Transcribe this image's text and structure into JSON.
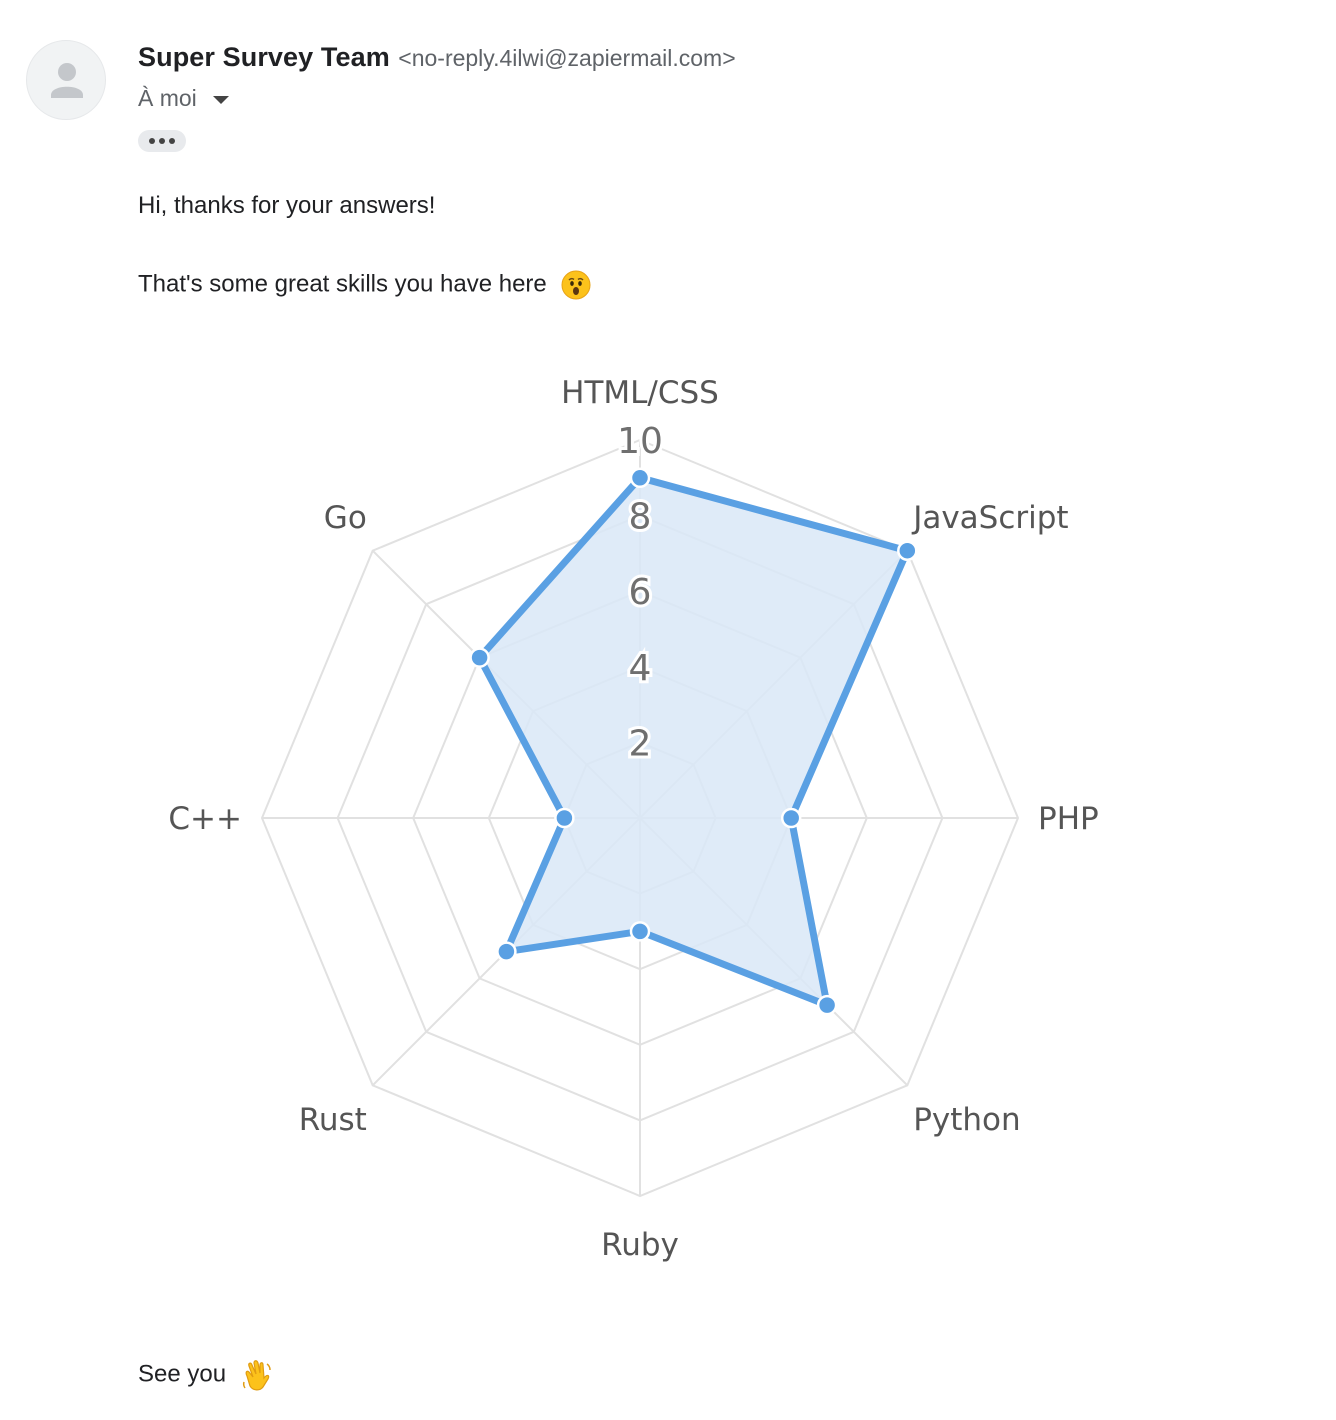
{
  "sender": {
    "name": "Super Survey Team",
    "email": "<no-reply.4ilwi@zapiermail.com>",
    "recipient": "À moi",
    "avatar_icon": "person-icon"
  },
  "message": {
    "greeting": "Hi, thanks for your answers!",
    "line2": "That's some great skills you have here",
    "line2_emoji": "astonished-face-icon",
    "closing": "See you",
    "closing_emoji": "waving-hand-icon"
  },
  "colors": {
    "series_stroke": "#5aa0e3",
    "series_fill": "#d9e8f7",
    "grid": "#e1e1e1"
  },
  "chart_data": {
    "type": "radar",
    "categories": [
      "HTML/CSS",
      "JavaScript",
      "PHP",
      "Python",
      "Ruby",
      "Rust",
      "C++",
      "Go"
    ],
    "series": [
      {
        "values": [
          9,
          10,
          4,
          7,
          3,
          5,
          2,
          6
        ]
      }
    ],
    "r_ticks": [
      "2",
      "4",
      "6",
      "8",
      "10"
    ],
    "rlim": [
      0,
      10
    ],
    "grid": true
  }
}
